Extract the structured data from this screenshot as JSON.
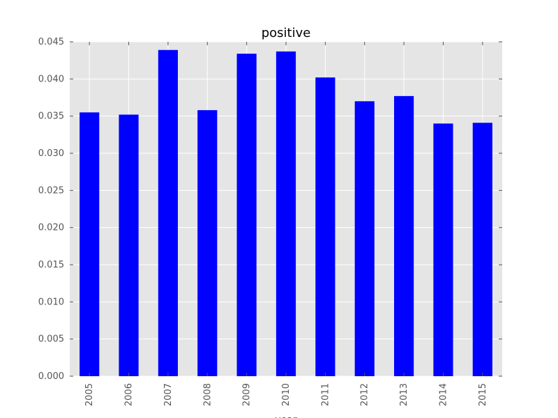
{
  "chart_data": {
    "type": "bar",
    "title": "positive",
    "xlabel": "year",
    "ylabel": "",
    "categories": [
      "2005",
      "2006",
      "2007",
      "2008",
      "2009",
      "2010",
      "2011",
      "2012",
      "2013",
      "2014",
      "2015"
    ],
    "values": [
      0.0355,
      0.0352,
      0.0439,
      0.0358,
      0.0434,
      0.0437,
      0.0402,
      0.037,
      0.0377,
      0.034,
      0.0341
    ],
    "ylim": [
      0,
      0.045
    ],
    "yticks": [
      "0.000",
      "0.005",
      "0.010",
      "0.015",
      "0.020",
      "0.025",
      "0.030",
      "0.035",
      "0.040",
      "0.045"
    ],
    "grid": true,
    "legend": "none",
    "colors": {
      "bar": "#0000ff",
      "plot_background": "#e5e5e5",
      "grid": "#ffffff"
    }
  }
}
